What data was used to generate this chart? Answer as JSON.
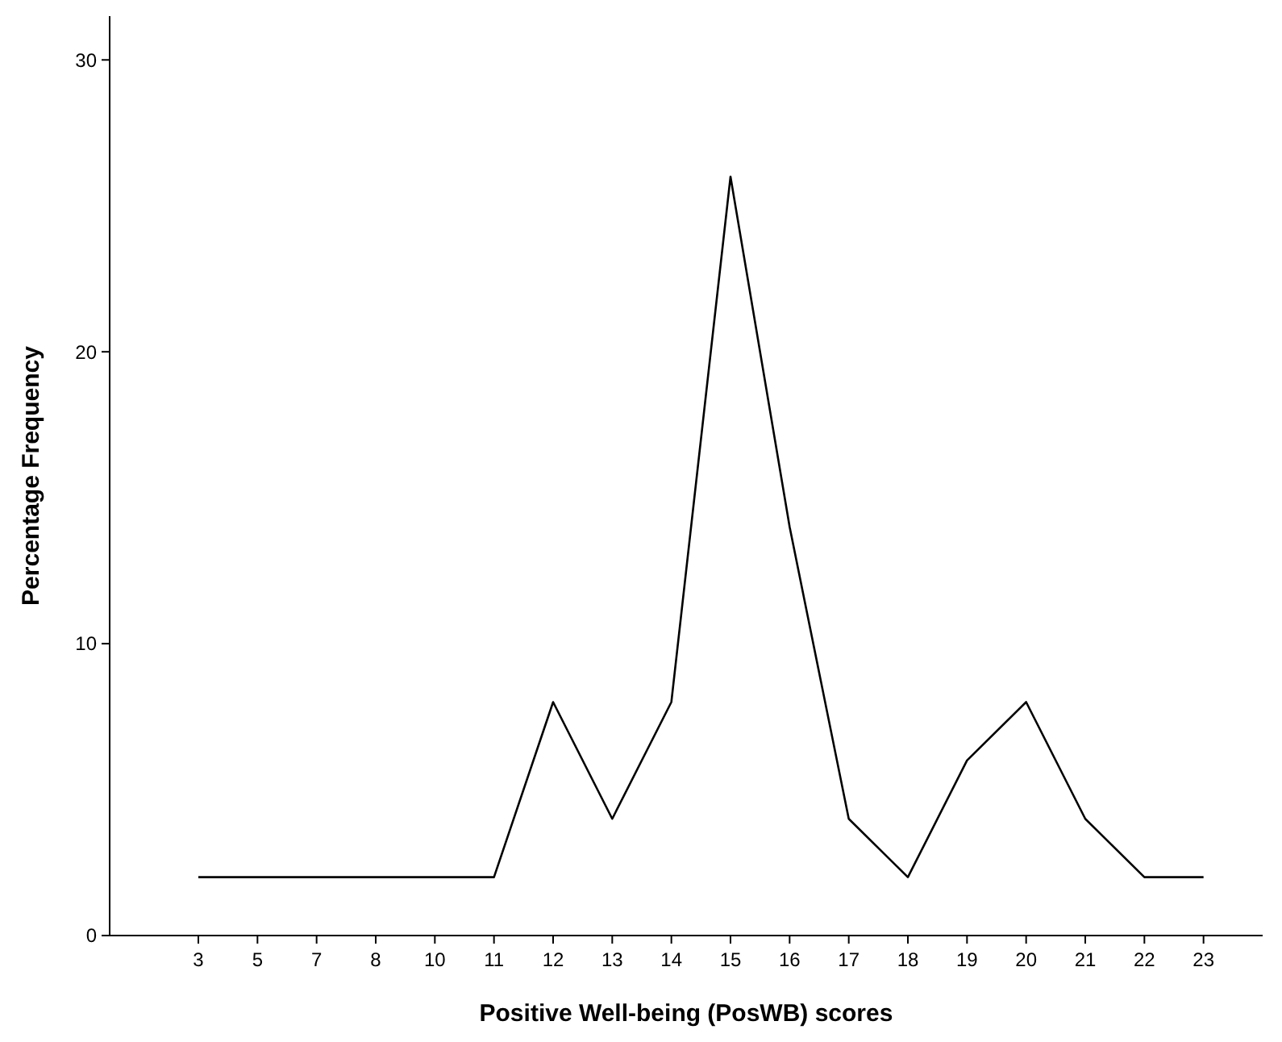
{
  "chart_data": {
    "type": "line",
    "xlabel": "Positive Well-being (PosWB) scores",
    "ylabel": "Percentage Frequency",
    "categories": [
      "3",
      "5",
      "7",
      "8",
      "10",
      "11",
      "12",
      "13",
      "14",
      "15",
      "16",
      "17",
      "18",
      "19",
      "20",
      "21",
      "22",
      "23"
    ],
    "series": [
      {
        "color": "#000000",
        "values": [
          2,
          2,
          2,
          2,
          2,
          2,
          8,
          4,
          8,
          26,
          14,
          4,
          2,
          6,
          8,
          4,
          2,
          2
        ]
      }
    ],
    "ylim": [
      0,
      31.5
    ],
    "yticks": [
      0,
      10,
      20,
      30
    ],
    "grid": false,
    "marker": "none",
    "line_style": "solid"
  }
}
